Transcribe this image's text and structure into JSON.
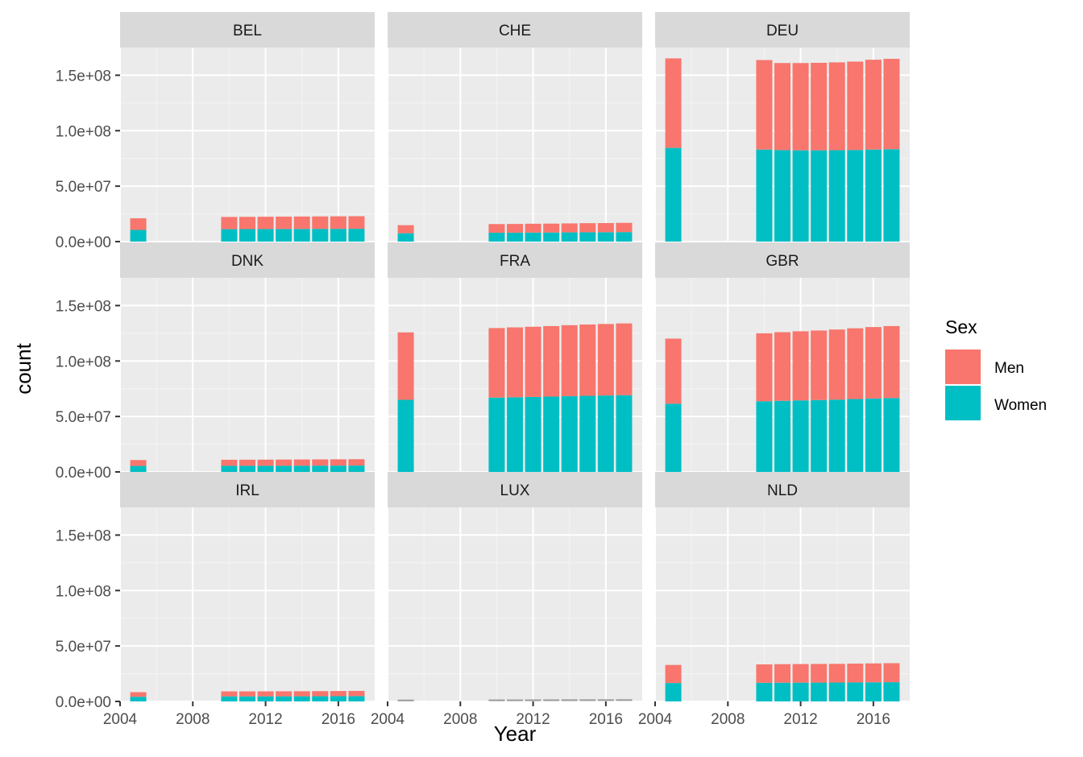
{
  "chart_data": {
    "type": "bar",
    "stacked": true,
    "xlabel": "Year",
    "ylabel": "count",
    "x": [
      2005,
      2010,
      2011,
      2012,
      2013,
      2014,
      2015,
      2016,
      2017
    ],
    "xlim": [
      2004,
      2018
    ],
    "ylim": [
      0,
      175000000
    ],
    "x_ticks": [
      2004,
      2008,
      2012,
      2016
    ],
    "x_tick_labels": [
      "2004",
      "2008",
      "2012",
      "2016"
    ],
    "y_ticks": [
      0,
      50000000,
      100000000,
      150000000
    ],
    "y_tick_labels": [
      "0.0e+00",
      "5.0e+07",
      "1.0e+08",
      "1.5e+08"
    ],
    "grid": true,
    "legend": {
      "title": "Sex",
      "placement": "right",
      "entries": [
        {
          "label": "Men",
          "color": "#F8766D"
        },
        {
          "label": "Women",
          "color": "#00BFC4"
        }
      ]
    },
    "missing_color": "#999999",
    "panels": [
      {
        "name": "BEL",
        "series": [
          {
            "name": "Women",
            "values": [
              10500000,
              11200000,
              11250000,
              11300000,
              11350000,
              11400000,
              11450000,
              11500000,
              11550000
            ]
          },
          {
            "name": "Men",
            "values": [
              10500000,
              11000000,
              11050000,
              11100000,
              11150000,
              11200000,
              11250000,
              11300000,
              11350000
            ]
          }
        ]
      },
      {
        "name": "CHE",
        "series": [
          {
            "name": "Women",
            "values": [
              7500000,
              8000000,
              8050000,
              8150000,
              8200000,
              8300000,
              8400000,
              8450000,
              8550000
            ]
          },
          {
            "name": "Men",
            "values": [
              7300000,
              7800000,
              7850000,
              7950000,
              8000000,
              8100000,
              8200000,
              8250000,
              8350000
            ]
          }
        ]
      },
      {
        "name": "DEU",
        "series": [
          {
            "name": "Women",
            "values": [
              84500000,
              83000000,
              82500000,
              82300000,
              82300000,
              82400000,
              82600000,
              83000000,
              83300000
            ]
          },
          {
            "name": "Men",
            "values": [
              80700000,
              80700000,
              78500000,
              78700000,
              78900000,
              79200000,
              79700000,
              81000000,
              81500000
            ]
          }
        ]
      },
      {
        "name": "DNK",
        "series": [
          {
            "name": "Women",
            "values": [
              5400000,
              5500000,
              5530000,
              5560000,
              5590000,
              5620000,
              5660000,
              5700000,
              5740000
            ]
          },
          {
            "name": "Men",
            "values": [
              5300000,
              5450000,
              5480000,
              5510000,
              5540000,
              5580000,
              5620000,
              5670000,
              5710000
            ]
          }
        ]
      },
      {
        "name": "FRA",
        "series": [
          {
            "name": "Women",
            "values": [
              65000000,
              67000000,
              67300000,
              67600000,
              67900000,
              68300000,
              68600000,
              68900000,
              69200000
            ]
          },
          {
            "name": "Men",
            "values": [
              60800000,
              62700000,
              63000000,
              63300000,
              63600000,
              64000000,
              64300000,
              64500000,
              64700000
            ]
          }
        ]
      },
      {
        "name": "GBR",
        "series": [
          {
            "name": "Women",
            "values": [
              61500000,
              63700000,
              64100000,
              64500000,
              64800000,
              65200000,
              65700000,
              66200000,
              66600000
            ]
          },
          {
            "name": "Men",
            "values": [
              58700000,
              61300000,
              61900000,
              62300000,
              62700000,
              63200000,
              63800000,
              64400000,
              64900000
            ]
          }
        ]
      },
      {
        "name": "IRL",
        "series": [
          {
            "name": "Women",
            "values": [
              4200000,
              4570000,
              4580000,
              4600000,
              4620000,
              4640000,
              4680000,
              4740000,
              4790000
            ]
          },
          {
            "name": "Men",
            "values": [
              4150000,
              4480000,
              4490000,
              4500000,
              4520000,
              4540000,
              4580000,
              4640000,
              4690000
            ]
          }
        ]
      },
      {
        "name": "LUX",
        "missing": true,
        "series": [
          {
            "name": "Women",
            "values": [
              460000,
              510000,
              520000,
              535000,
              550000,
              565000,
              580000,
              595000,
              610000
            ]
          },
          {
            "name": "Men",
            "values": [
              450000,
              510000,
              520000,
              535000,
              550000,
              565000,
              580000,
              595000,
              610000
            ]
          }
        ]
      },
      {
        "name": "NLD",
        "series": [
          {
            "name": "Women",
            "values": [
              16600000,
              16800000,
              16900000,
              16950000,
              17000000,
              17050000,
              17150000,
              17250000,
              17350000
            ]
          },
          {
            "name": "Men",
            "values": [
              16300000,
              16600000,
              16700000,
              16750000,
              16800000,
              16850000,
              16950000,
              17050000,
              17150000
            ]
          }
        ]
      }
    ]
  }
}
